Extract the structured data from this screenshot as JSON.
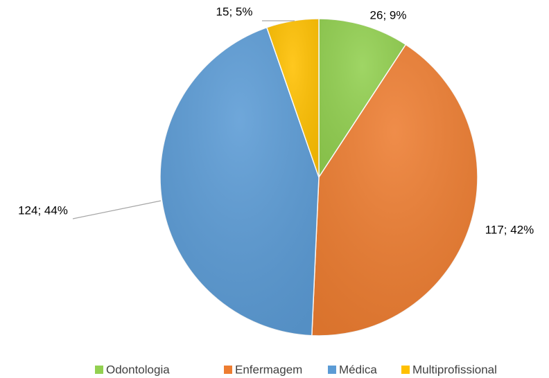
{
  "chart_data": {
    "type": "pie",
    "categories": [
      "Odontologia",
      "Enfermagem",
      "Médica",
      "Multiprofissional"
    ],
    "values": [
      26,
      117,
      124,
      15
    ],
    "value_labels": [
      "26; 9%",
      "117; 42%",
      "124; 44%",
      "15; 5%"
    ],
    "colors": [
      "#92d050",
      "#ed7d31",
      "#5b9bd5",
      "#ffc000"
    ],
    "legend": "bottom"
  }
}
